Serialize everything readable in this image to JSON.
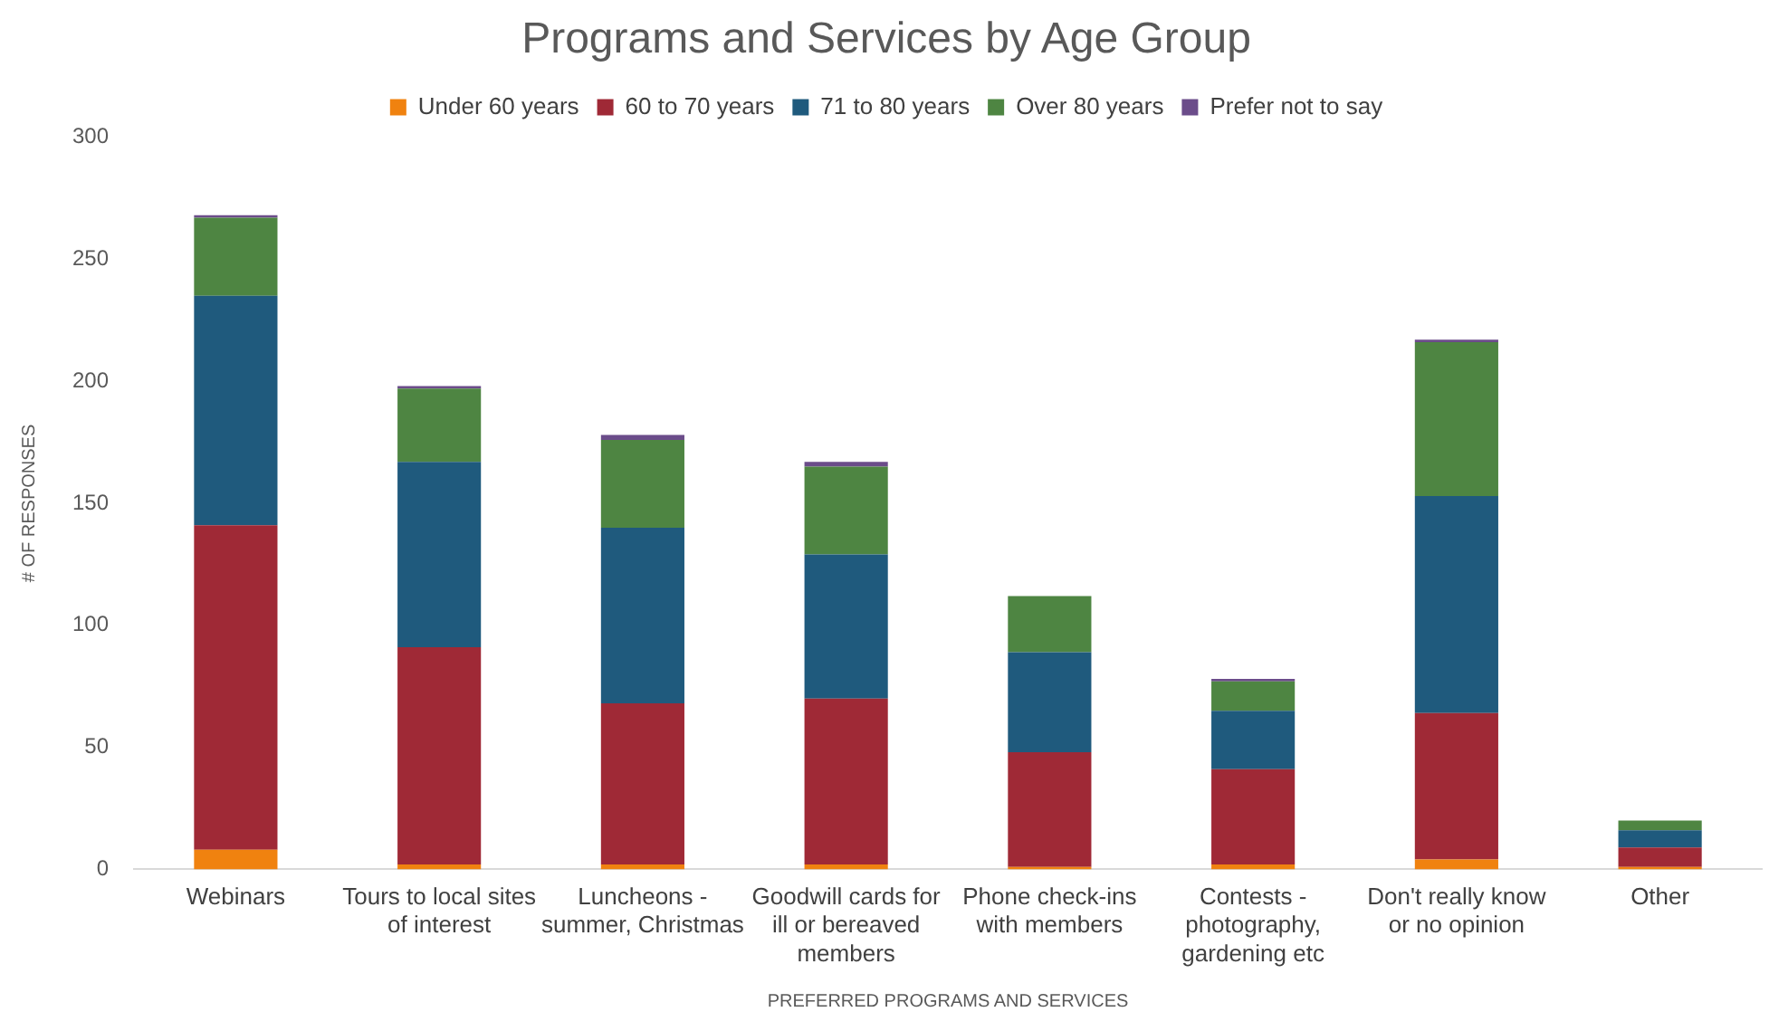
{
  "chart_data": {
    "type": "bar",
    "title": "Programs and Services by Age Group",
    "xlabel": "PREFERRED PROGRAMS AND SERVICES",
    "ylabel": "# OF RESPONSES",
    "categories": [
      "Webinars",
      "Tours to local sites of interest",
      "Luncheons - summer, Christmas",
      "Goodwill cards for ill or bereaved members",
      "Phone check-ins with members",
      "Contests - photography, gardening etc",
      "Don't really know or no opinion",
      "Other"
    ],
    "series": [
      {
        "name": "Under 60 years",
        "color": "#f0820f",
        "values": [
          8,
          2,
          2,
          2,
          1,
          2,
          4,
          1
        ]
      },
      {
        "name": "60 to 70 years",
        "color": "#9f2936",
        "values": [
          133,
          89,
          66,
          68,
          47,
          39,
          60,
          8
        ]
      },
      {
        "name": "71 to 80 years",
        "color": "#1f5a7d",
        "values": [
          94,
          76,
          72,
          59,
          41,
          24,
          89,
          7
        ]
      },
      {
        "name": "Over 80 years",
        "color": "#4e8542",
        "values": [
          32,
          30,
          36,
          36,
          23,
          12,
          63,
          4
        ]
      },
      {
        "name": "Prefer not to say",
        "color": "#6b4c8a",
        "values": [
          1,
          1,
          2,
          2,
          0,
          1,
          1,
          0
        ]
      }
    ],
    "stacked": true,
    "ylim": [
      0,
      300
    ],
    "yticks": [
      0,
      50,
      100,
      150,
      200,
      250,
      300
    ],
    "grid": false,
    "legend": "top"
  }
}
